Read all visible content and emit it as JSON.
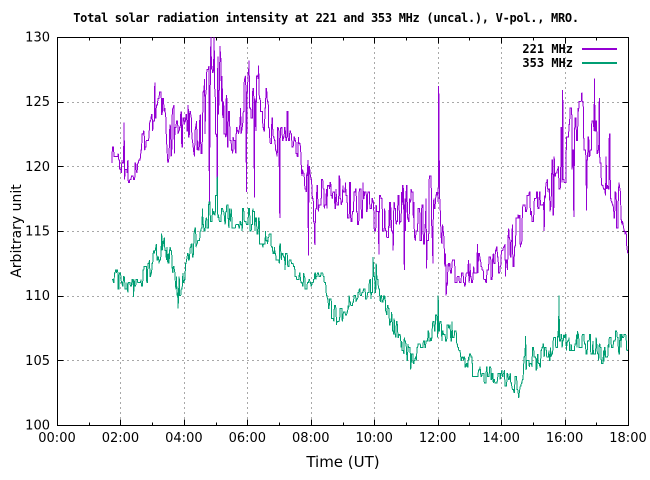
{
  "chart_data": {
    "type": "line",
    "title": "Total solar radiation intensity at 221 and 353 MHz (uncal.), V-pol., MRO.",
    "xlabel": "Time (UT)",
    "ylabel": "Arbitrary unit",
    "xlim_hours": [
      0,
      18
    ],
    "ylim": [
      100,
      130
    ],
    "grid": true,
    "legend_position": "top-right-inside",
    "x_ticks": [
      {
        "hour": 0,
        "label": "00:00"
      },
      {
        "hour": 2,
        "label": "02:00"
      },
      {
        "hour": 4,
        "label": "04:00"
      },
      {
        "hour": 6,
        "label": "06:00"
      },
      {
        "hour": 8,
        "label": "08:00"
      },
      {
        "hour": 10,
        "label": "10:00"
      },
      {
        "hour": 12,
        "label": "12:00"
      },
      {
        "hour": 14,
        "label": "14:00"
      },
      {
        "hour": 16,
        "label": "16:00"
      },
      {
        "hour": 18,
        "label": "18:00"
      }
    ],
    "x_minor_tick_hours": [
      1,
      3,
      5,
      7,
      9,
      11,
      13,
      15,
      17
    ],
    "y_ticks": [
      100,
      105,
      110,
      115,
      120,
      125,
      130
    ],
    "sample_step_hours": 0.0167,
    "seed": 1337,
    "keypoint_format": [
      "hour",
      "mean_value",
      "noise_half_range"
    ],
    "spike_format": [
      "hour",
      "value"
    ],
    "series": [
      {
        "name": "221 MHz",
        "color": "#9400d3",
        "keypoints": [
          [
            1.73,
            121.0,
            1.0
          ],
          [
            1.95,
            120.6,
            0.9
          ],
          [
            2.1,
            120.0,
            1.6
          ],
          [
            2.3,
            119.8,
            1.4
          ],
          [
            2.55,
            120.6,
            1.2
          ],
          [
            2.75,
            122.0,
            1.2
          ],
          [
            3.0,
            123.8,
            1.3
          ],
          [
            3.2,
            125.0,
            1.4
          ],
          [
            3.35,
            124.3,
            1.6
          ],
          [
            3.5,
            120.5,
            1.5
          ],
          [
            3.65,
            123.0,
            2.5
          ],
          [
            3.85,
            123.3,
            2.4
          ],
          [
            4.05,
            122.8,
            2.0
          ],
          [
            4.2,
            123.5,
            1.8
          ],
          [
            4.35,
            121.0,
            2.2
          ],
          [
            4.55,
            123.5,
            3.0
          ],
          [
            4.75,
            125.0,
            3.8
          ],
          [
            4.95,
            126.0,
            3.8
          ],
          [
            5.15,
            125.0,
            3.6
          ],
          [
            5.35,
            123.0,
            2.6
          ],
          [
            5.55,
            122.0,
            2.2
          ],
          [
            5.7,
            121.5,
            2.2
          ],
          [
            5.85,
            124.0,
            2.4
          ],
          [
            6.0,
            125.3,
            2.6
          ],
          [
            6.2,
            125.3,
            2.6
          ],
          [
            6.4,
            124.8,
            2.4
          ],
          [
            6.65,
            124.0,
            1.9
          ],
          [
            6.85,
            123.0,
            1.9
          ],
          [
            7.0,
            122.0,
            2.6
          ],
          [
            7.2,
            123.3,
            1.6
          ],
          [
            7.45,
            122.3,
            1.6
          ],
          [
            7.7,
            121.0,
            1.6
          ],
          [
            7.9,
            119.3,
            1.8
          ],
          [
            8.1,
            117.0,
            2.0
          ],
          [
            8.35,
            117.5,
            1.7
          ],
          [
            8.6,
            118.0,
            1.6
          ],
          [
            9.0,
            117.8,
            1.7
          ],
          [
            9.35,
            117.0,
            1.7
          ],
          [
            9.7,
            117.3,
            1.6
          ],
          [
            10.0,
            116.8,
            1.8
          ],
          [
            10.35,
            116.2,
            1.8
          ],
          [
            10.7,
            116.0,
            1.9
          ],
          [
            11.0,
            116.8,
            2.0
          ],
          [
            11.3,
            115.8,
            1.8
          ],
          [
            11.55,
            116.2,
            2.6
          ],
          [
            11.8,
            116.8,
            3.6
          ],
          [
            12.0,
            119.0,
            5.0
          ],
          [
            12.12,
            114.0,
            2.5
          ],
          [
            12.3,
            111.5,
            1.0
          ],
          [
            12.6,
            112.0,
            1.0
          ],
          [
            12.9,
            111.8,
            1.0
          ],
          [
            13.2,
            112.2,
            1.2
          ],
          [
            13.5,
            112.0,
            1.0
          ],
          [
            13.8,
            112.3,
            1.2
          ],
          [
            14.0,
            112.8,
            1.5
          ],
          [
            14.2,
            113.5,
            1.8
          ],
          [
            14.45,
            114.2,
            1.9
          ],
          [
            14.7,
            115.8,
            2.0
          ],
          [
            15.0,
            116.5,
            2.0
          ],
          [
            15.3,
            117.0,
            2.2
          ],
          [
            15.6,
            118.5,
            2.5
          ],
          [
            15.85,
            120.0,
            3.0
          ],
          [
            16.1,
            121.0,
            3.3
          ],
          [
            16.5,
            121.8,
            3.5
          ],
          [
            16.9,
            122.0,
            3.5
          ],
          [
            17.15,
            121.5,
            3.2
          ],
          [
            17.45,
            119.5,
            3.0
          ],
          [
            17.7,
            117.0,
            2.2
          ],
          [
            17.9,
            115.0,
            1.5
          ],
          [
            18.0,
            113.6,
            1.0
          ]
        ],
        "spikes": [
          [
            2.12,
            123.4
          ],
          [
            3.08,
            126.5
          ],
          [
            4.8,
            117.0
          ],
          [
            4.86,
            130.3
          ],
          [
            4.96,
            130.3
          ],
          [
            5.06,
            117.5
          ],
          [
            5.13,
            129.3
          ],
          [
            5.98,
            118.0
          ],
          [
            6.05,
            128.2
          ],
          [
            6.22,
            117.6
          ],
          [
            6.35,
            127.8
          ],
          [
            7.02,
            116.0
          ],
          [
            7.92,
            113.1
          ],
          [
            8.12,
            113.9
          ],
          [
            10.15,
            113.2
          ],
          [
            10.6,
            113.5
          ],
          [
            10.95,
            112.0
          ],
          [
            11.65,
            112.1
          ],
          [
            11.85,
            112.5
          ],
          [
            12.03,
            126.2
          ],
          [
            12.26,
            110.0
          ],
          [
            13.25,
            114.0
          ],
          [
            14.23,
            115.2
          ],
          [
            15.95,
            125.9
          ],
          [
            16.3,
            116.1
          ],
          [
            16.55,
            125.7
          ],
          [
            16.7,
            116.6
          ],
          [
            16.95,
            126.8
          ],
          [
            17.1,
            125.3
          ]
        ]
      },
      {
        "name": "353 MHz",
        "color": "#009e73",
        "keypoints": [
          [
            1.73,
            111.2,
            0.9
          ],
          [
            2.0,
            111.2,
            0.9
          ],
          [
            2.25,
            110.8,
            0.8
          ],
          [
            2.5,
            111.0,
            0.9
          ],
          [
            2.7,
            111.4,
            0.9
          ],
          [
            2.9,
            111.7,
            0.9
          ],
          [
            3.1,
            113.0,
            1.0
          ],
          [
            3.35,
            114.0,
            0.9
          ],
          [
            3.6,
            112.5,
            1.0
          ],
          [
            3.8,
            110.4,
            1.0
          ],
          [
            4.0,
            111.5,
            1.0
          ],
          [
            4.2,
            113.0,
            1.0
          ],
          [
            4.45,
            115.0,
            1.2
          ],
          [
            4.7,
            116.3,
            1.2
          ],
          [
            5.0,
            117.3,
            1.3
          ],
          [
            5.25,
            116.8,
            1.2
          ],
          [
            5.5,
            115.8,
            1.0
          ],
          [
            5.75,
            115.6,
            1.0
          ],
          [
            5.95,
            116.2,
            1.0
          ],
          [
            6.2,
            115.8,
            1.0
          ],
          [
            6.5,
            114.6,
            1.0
          ],
          [
            6.8,
            113.6,
            0.9
          ],
          [
            7.1,
            113.0,
            1.0
          ],
          [
            7.4,
            112.7,
            0.9
          ],
          [
            7.7,
            111.5,
            0.8
          ],
          [
            8.0,
            111.0,
            0.8
          ],
          [
            8.3,
            111.3,
            0.8
          ],
          [
            8.6,
            109.3,
            1.0
          ],
          [
            8.85,
            108.6,
            1.0
          ],
          [
            9.1,
            109.0,
            0.9
          ],
          [
            9.4,
            109.5,
            0.9
          ],
          [
            9.7,
            110.2,
            0.9
          ],
          [
            9.95,
            111.0,
            1.2
          ],
          [
            10.2,
            110.0,
            0.9
          ],
          [
            10.5,
            108.0,
            0.9
          ],
          [
            10.8,
            106.8,
            0.9
          ],
          [
            11.1,
            105.5,
            0.9
          ],
          [
            11.4,
            105.8,
            0.9
          ],
          [
            11.7,
            106.5,
            0.9
          ],
          [
            11.95,
            107.8,
            1.1
          ],
          [
            12.2,
            107.0,
            0.9
          ],
          [
            12.45,
            107.2,
            0.9
          ],
          [
            12.7,
            106.0,
            0.9
          ],
          [
            12.95,
            105.0,
            0.8
          ],
          [
            13.2,
            104.3,
            0.8
          ],
          [
            13.5,
            104.0,
            0.8
          ],
          [
            13.8,
            103.8,
            0.8
          ],
          [
            14.1,
            103.8,
            0.8
          ],
          [
            14.4,
            103.5,
            0.9
          ],
          [
            14.6,
            103.4,
            1.0
          ],
          [
            14.8,
            105.0,
            0.9
          ],
          [
            15.1,
            105.0,
            0.9
          ],
          [
            15.4,
            105.8,
            0.9
          ],
          [
            15.7,
            106.3,
            1.0
          ],
          [
            15.9,
            106.6,
            1.0
          ],
          [
            16.1,
            106.3,
            0.9
          ],
          [
            16.4,
            106.5,
            0.9
          ],
          [
            16.7,
            106.3,
            0.9
          ],
          [
            17.0,
            106.0,
            0.9
          ],
          [
            17.2,
            105.4,
            0.9
          ],
          [
            17.5,
            106.2,
            0.9
          ],
          [
            17.8,
            106.5,
            0.9
          ],
          [
            18.0,
            106.3,
            0.8
          ]
        ],
        "spikes": [
          [
            2.42,
            109.9
          ],
          [
            3.3,
            114.8
          ],
          [
            3.82,
            109.0
          ],
          [
            5.05,
            119.2
          ],
          [
            9.97,
            113.0
          ],
          [
            10.07,
            112.5
          ],
          [
            11.15,
            104.3
          ],
          [
            12.02,
            110.0
          ],
          [
            14.55,
            102.1
          ],
          [
            14.78,
            106.9
          ],
          [
            15.83,
            110.0
          ],
          [
            17.25,
            104.9
          ]
        ]
      }
    ],
    "colors": {
      "series_221": "#9400d3",
      "series_353": "#009e73",
      "grid": "#a8a8a8",
      "axis": "#000000",
      "background": "#ffffff"
    }
  }
}
